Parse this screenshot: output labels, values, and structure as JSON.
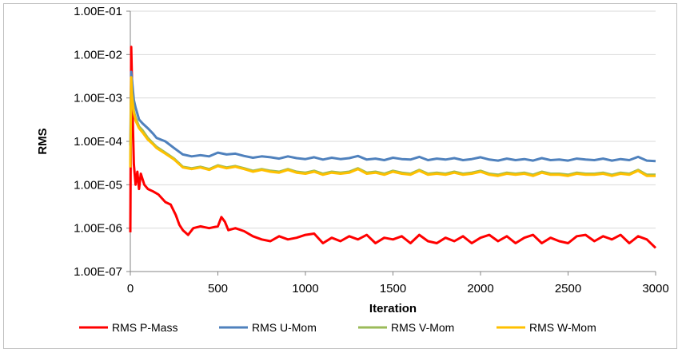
{
  "chart_data": {
    "type": "line",
    "title": "",
    "xlabel": "Iteration",
    "ylabel": "RMS",
    "xlim": [
      0,
      3000
    ],
    "ylim": [
      1e-07,
      0.1
    ],
    "yscale": "log",
    "grid": true,
    "legend_position": "bottom",
    "x_ticks": [
      "0",
      "500",
      "1000",
      "1500",
      "2000",
      "2500",
      "3000"
    ],
    "y_ticks": [
      "1.00E-07",
      "1.00E-06",
      "1.00E-05",
      "1.00E-04",
      "1.00E-03",
      "1.00E-02",
      "1.00E-01"
    ],
    "series": [
      {
        "name": "RMS P-Mass",
        "color": "#ff0000",
        "x": [
          0,
          5,
          10,
          15,
          20,
          30,
          40,
          50,
          60,
          80,
          100,
          130,
          160,
          200,
          230,
          260,
          280,
          300,
          330,
          360,
          400,
          450,
          500,
          520,
          540,
          560,
          600,
          650,
          700,
          750,
          800,
          850,
          900,
          950,
          1000,
          1050,
          1100,
          1150,
          1200,
          1250,
          1300,
          1350,
          1400,
          1450,
          1500,
          1550,
          1600,
          1650,
          1700,
          1750,
          1800,
          1850,
          1900,
          1950,
          2000,
          2050,
          2100,
          2150,
          2200,
          2250,
          2300,
          2350,
          2400,
          2450,
          2500,
          2550,
          2600,
          2650,
          2700,
          2750,
          2800,
          2850,
          2900,
          2950,
          3000
        ],
        "y": [
          8e-07,
          0.015,
          0.002,
          0.0002,
          3e-05,
          1e-05,
          2e-05,
          8e-06,
          1.8e-05,
          1e-05,
          8e-06,
          7e-06,
          6e-06,
          4e-06,
          3.5e-06,
          2e-06,
          1.2e-06,
          9e-07,
          7e-07,
          1e-06,
          1.1e-06,
          1e-06,
          1.1e-06,
          1.8e-06,
          1.4e-06,
          9e-07,
          1e-06,
          8.5e-07,
          6.5e-07,
          5.5e-07,
          5e-07,
          6.5e-07,
          5.5e-07,
          6e-07,
          7e-07,
          7.5e-07,
          4.5e-07,
          6e-07,
          5e-07,
          6.5e-07,
          5.5e-07,
          7e-07,
          4.5e-07,
          6e-07,
          5.5e-07,
          6.5e-07,
          4.5e-07,
          7e-07,
          5e-07,
          4.5e-07,
          6e-07,
          5e-07,
          6.5e-07,
          4.5e-07,
          6e-07,
          7e-07,
          5e-07,
          6.5e-07,
          4.5e-07,
          6e-07,
          7e-07,
          4.5e-07,
          6e-07,
          5e-07,
          4.5e-07,
          6.5e-07,
          7e-07,
          5e-07,
          6.5e-07,
          5.5e-07,
          7e-07,
          4.5e-07,
          6.5e-07,
          5.5e-07,
          3.5e-07
        ]
      },
      {
        "name": "RMS U-Mom",
        "color": "#4f81bd",
        "x": [
          0,
          5,
          10,
          20,
          30,
          50,
          70,
          100,
          130,
          150,
          200,
          250,
          300,
          350,
          400,
          450,
          500,
          550,
          600,
          650,
          700,
          750,
          800,
          850,
          900,
          950,
          1000,
          1050,
          1100,
          1150,
          1200,
          1250,
          1300,
          1350,
          1400,
          1450,
          1500,
          1550,
          1600,
          1650,
          1700,
          1750,
          1800,
          1850,
          1900,
          1950,
          2000,
          2050,
          2100,
          2150,
          2200,
          2250,
          2300,
          2350,
          2400,
          2450,
          2500,
          2550,
          2600,
          2650,
          2700,
          2750,
          2800,
          2850,
          2900,
          2950,
          3000
        ],
        "y": [
          8e-05,
          0.004,
          0.0025,
          0.0009,
          0.0006,
          0.00032,
          0.00026,
          0.0002,
          0.00015,
          0.00012,
          0.0001,
          7e-05,
          5e-05,
          4.5e-05,
          4.8e-05,
          4.5e-05,
          5.5e-05,
          5e-05,
          5.2e-05,
          4.6e-05,
          4.2e-05,
          4.5e-05,
          4.3e-05,
          4e-05,
          4.5e-05,
          4.1e-05,
          3.9e-05,
          4.3e-05,
          3.8e-05,
          4.2e-05,
          3.9e-05,
          4.1e-05,
          4.6e-05,
          3.8e-05,
          4e-05,
          3.7e-05,
          4.2e-05,
          3.9e-05,
          3.8e-05,
          4.4e-05,
          3.7e-05,
          4e-05,
          3.8e-05,
          4.1e-05,
          3.7e-05,
          3.9e-05,
          4.3e-05,
          3.8e-05,
          3.6e-05,
          4e-05,
          3.7e-05,
          3.9e-05,
          3.6e-05,
          4.1e-05,
          3.7e-05,
          3.8e-05,
          3.6e-05,
          4e-05,
          3.8e-05,
          3.7e-05,
          4e-05,
          3.6e-05,
          3.9e-05,
          3.7e-05,
          4.4e-05,
          3.6e-05,
          3.5e-05
        ]
      },
      {
        "name": "RMS V-Mom",
        "color": "#9bbb59",
        "x": [
          0,
          5,
          10,
          20,
          30,
          50,
          70,
          100,
          130,
          150,
          200,
          250,
          300,
          350,
          400,
          450,
          500,
          550,
          600,
          650,
          700,
          750,
          800,
          850,
          900,
          950,
          1000,
          1050,
          1100,
          1150,
          1200,
          1250,
          1300,
          1350,
          1400,
          1450,
          1500,
          1550,
          1600,
          1650,
          1700,
          1750,
          1800,
          1850,
          1900,
          1950,
          2000,
          2050,
          2100,
          2150,
          2200,
          2250,
          2300,
          2350,
          2400,
          2450,
          2500,
          2550,
          2600,
          2650,
          2700,
          2750,
          2800,
          2850,
          2900,
          2950,
          3000
        ],
        "y": [
          3e-05,
          0.002,
          0.0012,
          0.0005,
          0.00035,
          0.00022,
          0.00018,
          0.00012,
          9e-05,
          7.5e-05,
          5.5e-05,
          4e-05,
          2.6e-05,
          2.4e-05,
          2.6e-05,
          2.3e-05,
          2.8e-05,
          2.5e-05,
          2.7e-05,
          2.4e-05,
          2.1e-05,
          2.3e-05,
          2.1e-05,
          2e-05,
          2.3e-05,
          2e-05,
          1.9e-05,
          2.1e-05,
          1.8e-05,
          2e-05,
          1.9e-05,
          2e-05,
          2.4e-05,
          1.9e-05,
          2e-05,
          1.8e-05,
          2.1e-05,
          1.9e-05,
          1.8e-05,
          2.2e-05,
          1.8e-05,
          1.9e-05,
          1.8e-05,
          2e-05,
          1.8e-05,
          1.9e-05,
          2.1e-05,
          1.8e-05,
          1.7e-05,
          1.9e-05,
          1.8e-05,
          1.9e-05,
          1.7e-05,
          2e-05,
          1.8e-05,
          1.8e-05,
          1.7e-05,
          1.9e-05,
          1.8e-05,
          1.8e-05,
          1.9e-05,
          1.7e-05,
          1.9e-05,
          1.8e-05,
          2.2e-05,
          1.7e-05,
          1.7e-05
        ]
      },
      {
        "name": "RMS W-Mom",
        "color": "#ffc000",
        "x": [
          0,
          5,
          10,
          20,
          30,
          50,
          70,
          100,
          130,
          150,
          200,
          250,
          300,
          350,
          400,
          450,
          500,
          550,
          600,
          650,
          700,
          750,
          800,
          850,
          900,
          950,
          1000,
          1050,
          1100,
          1150,
          1200,
          1250,
          1300,
          1350,
          1400,
          1450,
          1500,
          1550,
          1600,
          1650,
          1700,
          1750,
          1800,
          1850,
          1900,
          1950,
          2000,
          2050,
          2100,
          2150,
          2200,
          2250,
          2300,
          2350,
          2400,
          2450,
          2500,
          2550,
          2600,
          2650,
          2700,
          2750,
          2800,
          2850,
          2900,
          2950,
          3000
        ],
        "y": [
          2.5e-05,
          0.003,
          0.001,
          0.00045,
          0.0003,
          0.0002,
          0.00016,
          0.00011,
          8.5e-05,
          7e-05,
          5.2e-05,
          3.8e-05,
          2.5e-05,
          2.3e-05,
          2.5e-05,
          2.2e-05,
          2.7e-05,
          2.4e-05,
          2.6e-05,
          2.3e-05,
          2e-05,
          2.2e-05,
          2e-05,
          1.9e-05,
          2.2e-05,
          1.9e-05,
          1.8e-05,
          2e-05,
          1.7e-05,
          1.9e-05,
          1.8e-05,
          1.9e-05,
          2.3e-05,
          1.8e-05,
          1.9e-05,
          1.7e-05,
          2e-05,
          1.8e-05,
          1.7e-05,
          2.1e-05,
          1.7e-05,
          1.8e-05,
          1.7e-05,
          1.9e-05,
          1.7e-05,
          1.8e-05,
          2e-05,
          1.7e-05,
          1.6e-05,
          1.8e-05,
          1.7e-05,
          1.8e-05,
          1.6e-05,
          1.9e-05,
          1.7e-05,
          1.7e-05,
          1.6e-05,
          1.8e-05,
          1.7e-05,
          1.7e-05,
          1.8e-05,
          1.6e-05,
          1.8e-05,
          1.7e-05,
          2.1e-05,
          1.6e-05,
          1.6e-05
        ]
      }
    ]
  }
}
